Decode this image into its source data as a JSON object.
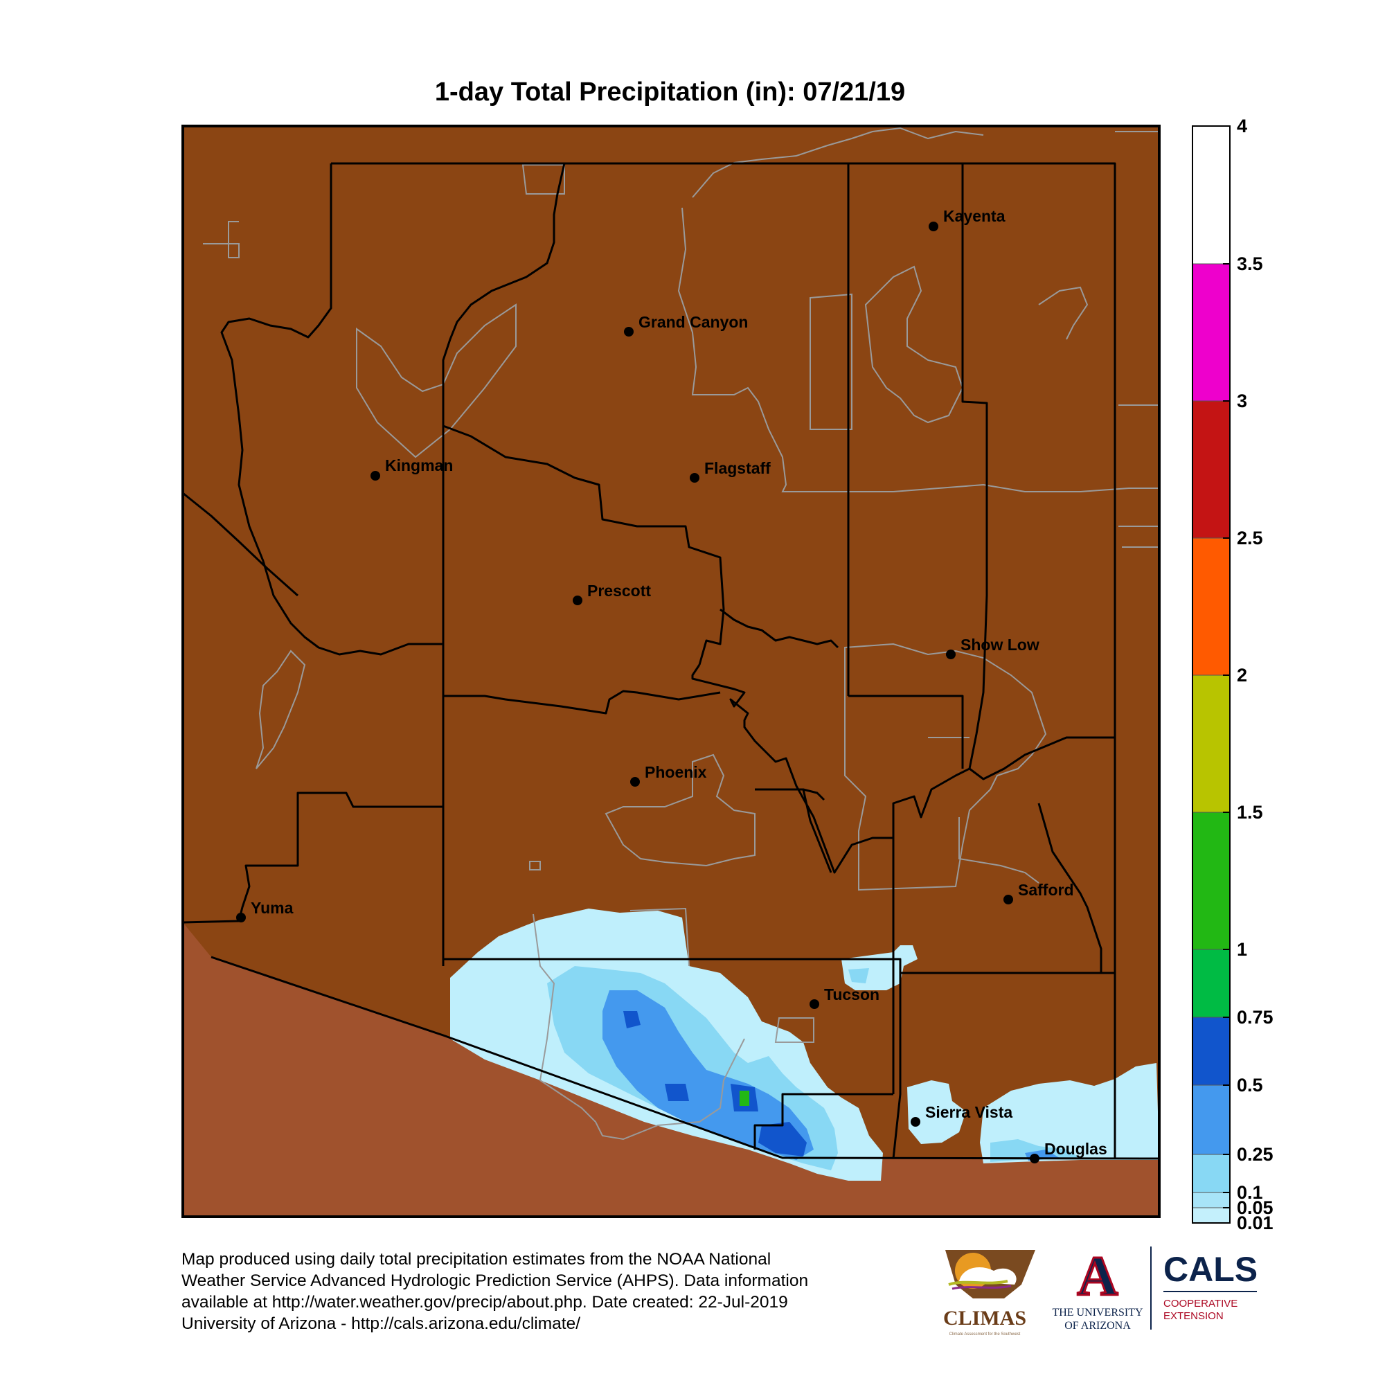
{
  "title": "1-day Total Precipitation (in): 07/21/19",
  "colors": {
    "no_precip": "#8B4513",
    "outside_state": "#A0522D",
    "county_line": "#000000",
    "reservation_line": "#999999"
  },
  "legend": {
    "ticks": [
      "4",
      "3.5",
      "3",
      "2.5",
      "2",
      "1.5",
      "1",
      "0.75",
      "0.5",
      "0.25",
      "0.1",
      "0.05",
      "0.01"
    ],
    "bins": [
      {
        "from": "3.5",
        "to": "4",
        "color": "#FFFFFF"
      },
      {
        "from": "3",
        "to": "3.5",
        "color": "#EE00CC"
      },
      {
        "from": "2.5",
        "to": "3",
        "color": "#C41414"
      },
      {
        "from": "2",
        "to": "2.5",
        "color": "#FF5A00"
      },
      {
        "from": "1.5",
        "to": "2",
        "color": "#B8C400"
      },
      {
        "from": "1",
        "to": "1.5",
        "color": "#22B814"
      },
      {
        "from": "0.75",
        "to": "1",
        "color": "#00BB44"
      },
      {
        "from": "0.5",
        "to": "0.75",
        "color": "#1155CC"
      },
      {
        "from": "0.25",
        "to": "0.5",
        "color": "#4499EE"
      },
      {
        "from": "0.1",
        "to": "0.25",
        "color": "#88D8F4"
      },
      {
        "from": "0.05",
        "to": "0.1",
        "color": "#A8E4F8"
      },
      {
        "from": "0.01",
        "to": "0.05",
        "color": "#C4F0FC"
      }
    ]
  },
  "cities": [
    {
      "name": "Kayenta"
    },
    {
      "name": "Grand Canyon"
    },
    {
      "name": "Kingman"
    },
    {
      "name": "Flagstaff"
    },
    {
      "name": "Prescott"
    },
    {
      "name": "Show Low"
    },
    {
      "name": "Phoenix"
    },
    {
      "name": "Yuma"
    },
    {
      "name": "Safford"
    },
    {
      "name": "Tucson"
    },
    {
      "name": "Sierra Vista"
    },
    {
      "name": "Douglas"
    }
  ],
  "footer": {
    "line1": "Map produced using daily total precipitation estimates from the NOAA National",
    "line2": "Weather Service Advanced Hydrologic Prediction Service (AHPS). Data information",
    "line3": "available at http://water.weather.gov/precip/about.php. Date created: 22-Jul-2019",
    "line4": "University of Arizona - http://cals.arizona.edu/climate/"
  },
  "logos": {
    "climas": "CLIMAS",
    "climas_tagline": "Climate Assessment for the Southwest",
    "ua_letter": "A",
    "ua_name_1": "THE UNIVERSITY",
    "ua_name_2": "OF ARIZONA",
    "cals": "CALS",
    "cals_sub_1": "COOPERATIVE",
    "cals_sub_2": "EXTENSION"
  }
}
